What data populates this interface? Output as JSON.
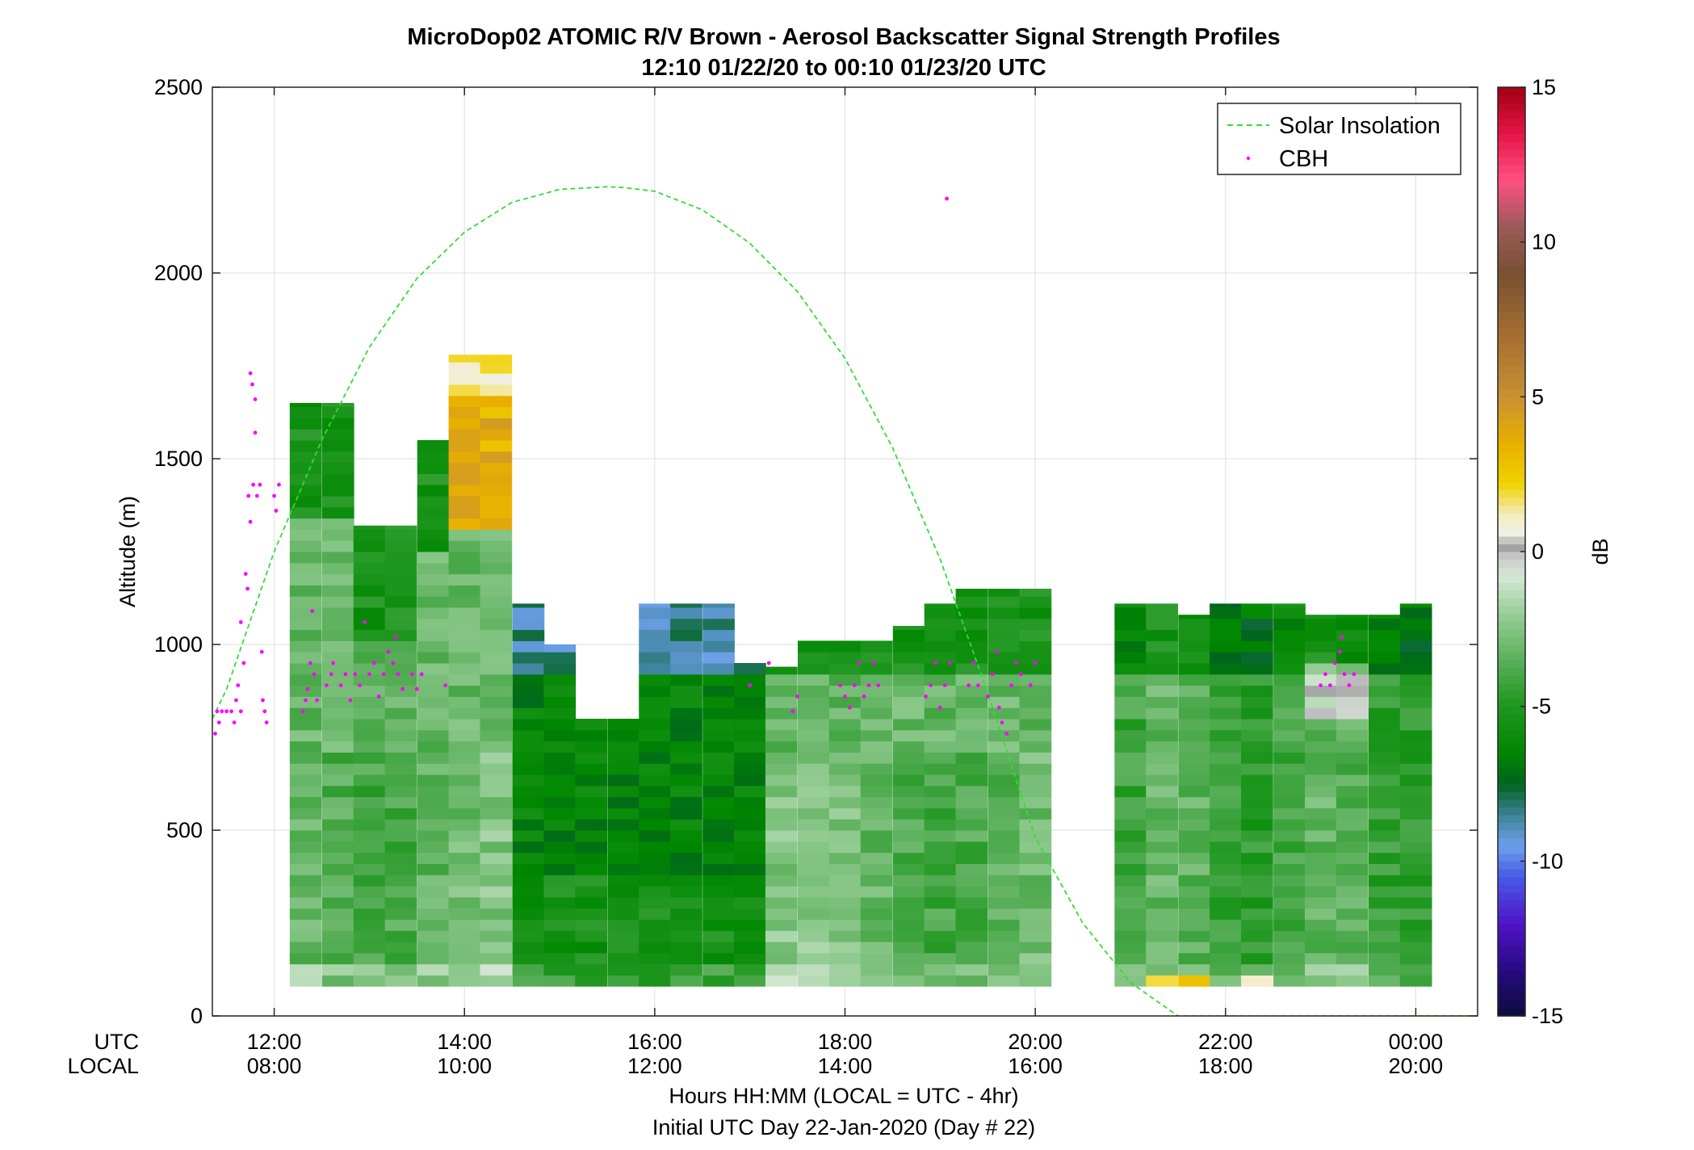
{
  "chart_data": {
    "type": "heatmap",
    "title": "MicroDop02 ATOMIC R/V Brown - Aerosol Backscatter Signal Strength Profiles",
    "subtitle": "12:10 01/22/20 to 00:10 01/23/20  UTC",
    "ylabel": "Altitude (m)",
    "xlabel": "Hours HH:MM  (LOCAL = UTC - 4hr)",
    "xlabel2": "Initial UTC Day 22-Jan-2020 (Day # 22)",
    "row_label_utc": "UTC",
    "row_label_local": "LOCAL",
    "colorbar_label": "dB",
    "xlim": [
      11.35,
      24.65
    ],
    "ylim": [
      0,
      2500
    ],
    "clim": [
      -15,
      15
    ],
    "grid": true,
    "legend_position": "top-right",
    "x_ticks": [
      {
        "x": 12,
        "utc": "12:00",
        "local": "08:00"
      },
      {
        "x": 14,
        "utc": "14:00",
        "local": "10:00"
      },
      {
        "x": 16,
        "utc": "16:00",
        "local": "12:00"
      },
      {
        "x": 18,
        "utc": "18:00",
        "local": "14:00"
      },
      {
        "x": 20,
        "utc": "20:00",
        "local": "16:00"
      },
      {
        "x": 22,
        "utc": "22:00",
        "local": "18:00"
      },
      {
        "x": 24,
        "utc": "00:00",
        "local": "20:00"
      }
    ],
    "y_ticks": [
      0,
      500,
      1000,
      1500,
      2000,
      2500
    ],
    "colorbar_ticks": [
      -15,
      -10,
      -5,
      0,
      5,
      10,
      15
    ],
    "profile_time_step_h": 0.333,
    "profile_times": [
      12.33,
      12.67,
      13.0,
      13.33,
      13.67,
      14.0,
      14.33,
      14.67,
      15.0,
      15.33,
      15.67,
      16.0,
      16.33,
      16.67,
      17.0,
      17.33,
      17.67,
      18.0,
      18.33,
      18.67,
      19.0,
      19.33,
      19.67,
      20.0,
      21.0,
      21.33,
      21.67,
      22.0,
      22.33,
      22.67,
      23.0,
      23.33,
      23.67,
      24.0
    ],
    "profile_tops_m": [
      1650,
      1650,
      1320,
      1320,
      1550,
      1780,
      1780,
      1110,
      1000,
      800,
      800,
      1110,
      1110,
      1110,
      950,
      940,
      1010,
      1010,
      1010,
      1050,
      1110,
      1150,
      1150,
      1150,
      1110,
      1110,
      1080,
      1110,
      1110,
      1110,
      1080,
      1080,
      1080,
      1110
    ],
    "series": [
      {
        "name": "Solar Insolation",
        "type": "line",
        "color": "#33dd33",
        "peak_x": 15.67,
        "peak_y": 2230,
        "x": [
          11.35,
          11.5,
          12.0,
          12.5,
          13.0,
          13.5,
          14.0,
          14.5,
          15.0,
          15.5,
          15.67,
          16.0,
          16.5,
          17.0,
          17.5,
          18.0,
          18.5,
          19.0,
          19.5,
          20.0,
          20.5,
          21.0,
          21.5,
          21.72,
          22.0,
          23.0,
          24.0,
          24.65
        ],
        "y": [
          800,
          880,
          1250,
          1550,
          1800,
          1985,
          2110,
          2190,
          2225,
          2232,
          2230,
          2220,
          2170,
          2080,
          1950,
          1770,
          1530,
          1230,
          870,
          480,
          250,
          90,
          0,
          0,
          0,
          0,
          0,
          0
        ]
      },
      {
        "name": "CBH",
        "type": "scatter",
        "color": "#ff00ff",
        "points": [
          [
            11.38,
            760
          ],
          [
            11.4,
            820
          ],
          [
            11.42,
            790
          ],
          [
            11.45,
            820
          ],
          [
            11.5,
            820
          ],
          [
            11.55,
            820
          ],
          [
            11.58,
            790
          ],
          [
            11.6,
            850
          ],
          [
            11.62,
            890
          ],
          [
            11.65,
            820
          ],
          [
            11.65,
            1060
          ],
          [
            11.68,
            950
          ],
          [
            11.7,
            1190
          ],
          [
            11.72,
            1150
          ],
          [
            11.73,
            1400
          ],
          [
            11.75,
            1330
          ],
          [
            11.75,
            1730
          ],
          [
            11.77,
            1700
          ],
          [
            11.78,
            1430
          ],
          [
            11.8,
            1660
          ],
          [
            11.8,
            1570
          ],
          [
            11.82,
            1400
          ],
          [
            11.85,
            1430
          ],
          [
            11.87,
            980
          ],
          [
            11.88,
            850
          ],
          [
            11.9,
            820
          ],
          [
            11.92,
            790
          ],
          [
            12.0,
            1400
          ],
          [
            12.02,
            1360
          ],
          [
            12.05,
            1430
          ],
          [
            12.3,
            820
          ],
          [
            12.33,
            850
          ],
          [
            12.35,
            880
          ],
          [
            12.38,
            950
          ],
          [
            12.4,
            1090
          ],
          [
            12.42,
            920
          ],
          [
            12.45,
            850
          ],
          [
            12.55,
            890
          ],
          [
            12.6,
            920
          ],
          [
            12.62,
            950
          ],
          [
            12.7,
            890
          ],
          [
            12.75,
            920
          ],
          [
            12.8,
            850
          ],
          [
            12.85,
            920
          ],
          [
            12.9,
            890
          ],
          [
            12.95,
            1060
          ],
          [
            13.0,
            920
          ],
          [
            13.05,
            950
          ],
          [
            13.1,
            860
          ],
          [
            13.15,
            920
          ],
          [
            13.2,
            980
          ],
          [
            13.25,
            950
          ],
          [
            13.28,
            1020
          ],
          [
            13.3,
            920
          ],
          [
            13.35,
            880
          ],
          [
            13.45,
            920
          ],
          [
            13.5,
            880
          ],
          [
            13.55,
            920
          ],
          [
            13.8,
            890
          ],
          [
            17.0,
            890
          ],
          [
            17.2,
            950
          ],
          [
            17.45,
            820
          ],
          [
            17.5,
            860
          ],
          [
            17.95,
            890
          ],
          [
            18.0,
            860
          ],
          [
            18.05,
            830
          ],
          [
            18.1,
            890
          ],
          [
            18.15,
            950
          ],
          [
            18.2,
            860
          ],
          [
            18.25,
            890
          ],
          [
            18.3,
            950
          ],
          [
            18.35,
            890
          ],
          [
            18.85,
            860
          ],
          [
            18.9,
            890
          ],
          [
            18.95,
            950
          ],
          [
            19.0,
            830
          ],
          [
            19.05,
            890
          ],
          [
            19.1,
            950
          ],
          [
            19.3,
            890
          ],
          [
            19.35,
            950
          ],
          [
            19.4,
            890
          ],
          [
            19.5,
            860
          ],
          [
            19.55,
            920
          ],
          [
            19.6,
            980
          ],
          [
            19.62,
            830
          ],
          [
            19.65,
            790
          ],
          [
            19.7,
            760
          ],
          [
            19.75,
            890
          ],
          [
            19.8,
            950
          ],
          [
            19.85,
            920
          ],
          [
            19.95,
            890
          ],
          [
            20.0,
            950
          ],
          [
            23.0,
            890
          ],
          [
            23.05,
            920
          ],
          [
            23.1,
            890
          ],
          [
            23.15,
            950
          ],
          [
            23.2,
            980
          ],
          [
            23.22,
            1020
          ],
          [
            23.25,
            920
          ],
          [
            23.3,
            890
          ],
          [
            23.35,
            920
          ],
          [
            19.07,
            2200
          ]
        ]
      }
    ]
  }
}
